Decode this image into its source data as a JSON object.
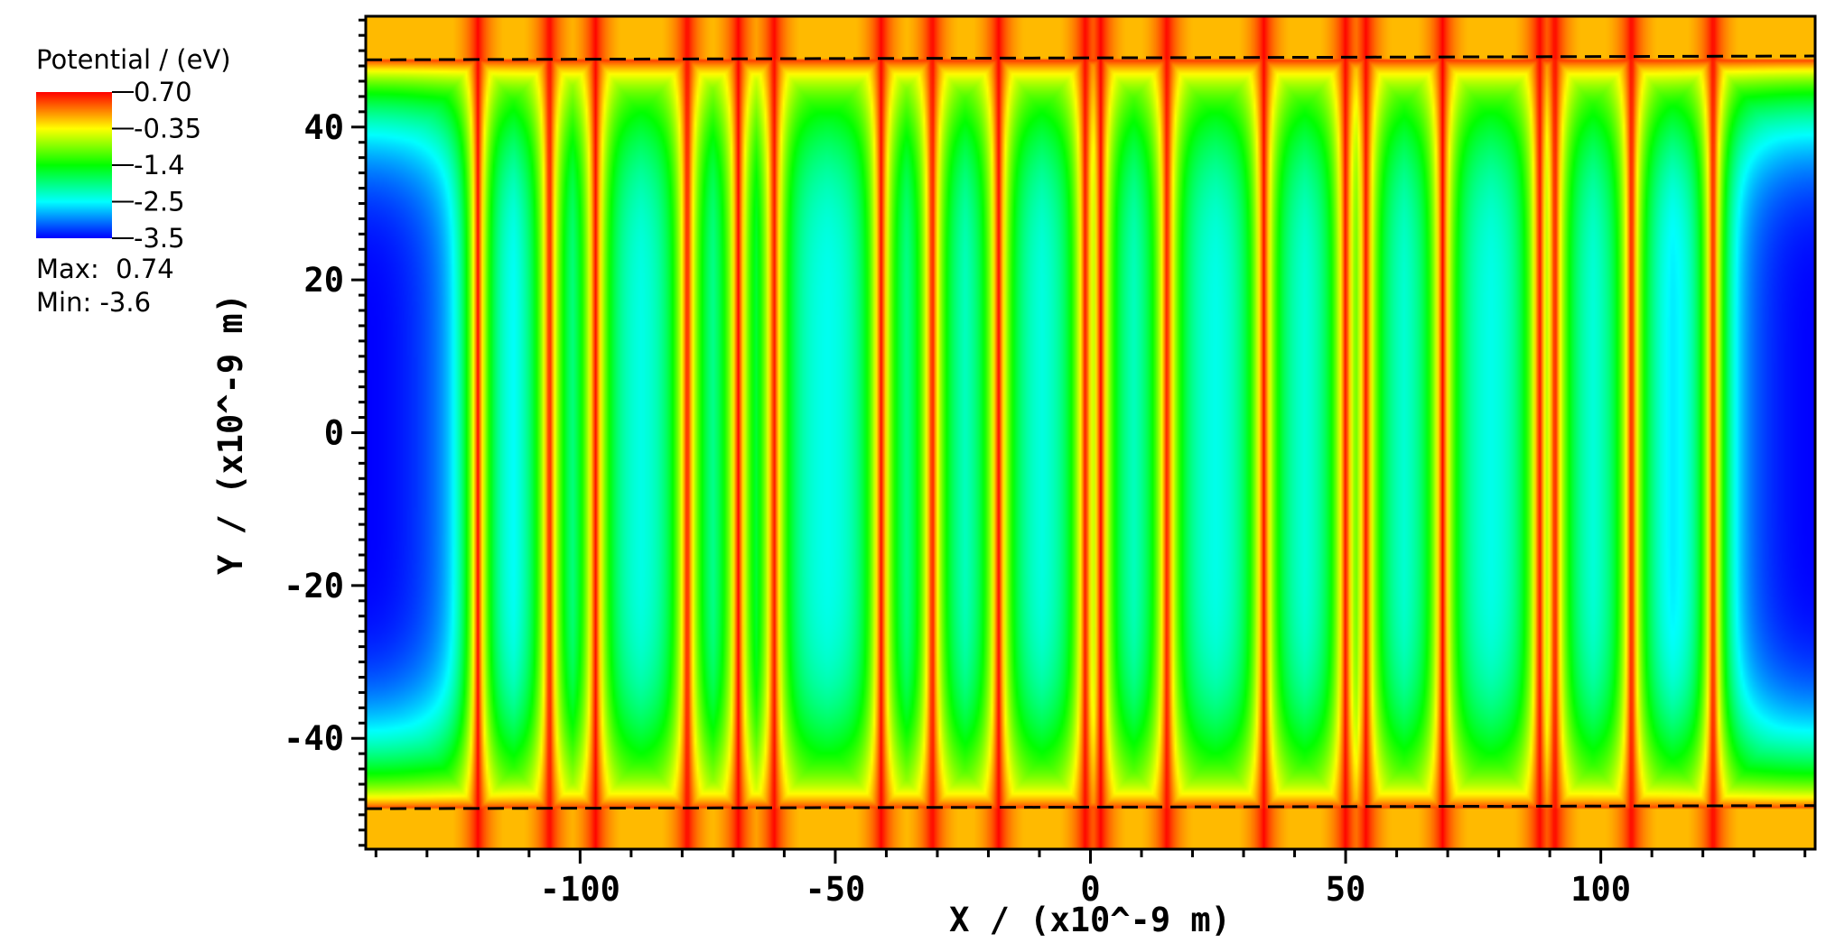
{
  "chart_data": {
    "type": "heatmap",
    "title": "",
    "xlabel": "X / (x10^-9 m)",
    "ylabel": "Y / (x10^-9 m)",
    "xlim": [
      -142,
      142
    ],
    "ylim": [
      -54.5,
      54.5
    ],
    "x_ticks": [
      -100,
      -50,
      0,
      50,
      100
    ],
    "x_tick_labels": [
      "-100",
      "-50",
      "0",
      "50",
      "100"
    ],
    "y_ticks": [
      40,
      20,
      0,
      -20,
      -40
    ],
    "y_tick_labels": [
      "40",
      "20",
      "0",
      "-20",
      "-40"
    ],
    "colorbar": {
      "title": "Potential / (eV)",
      "tick_labels": [
        "0.70",
        "-0.35",
        "-1.4",
        "-2.5",
        "-3.5"
      ],
      "max_label": "Max:  0.74",
      "min_label": "Min: -3.6",
      "colormap": [
        "#0000ff",
        "#00ffff",
        "#00ff00",
        "#ffff00",
        "#ff0000"
      ]
    },
    "field": {
      "edge_value": -3.5,
      "edge_width": 23,
      "interior_max": -2.45,
      "band_value": 0.7,
      "cap_value": -0.2,
      "boundary_y": [
        48.8,
        -49.2
      ],
      "stripes_x": [
        -120,
        -106,
        -97,
        -79,
        -69,
        -62,
        -41,
        -31,
        -18,
        -1,
        2,
        15,
        34,
        50,
        54,
        69,
        88,
        91,
        106,
        122
      ]
    },
    "dashed_lines": [
      {
        "y_left": 48.8,
        "y_right": 49.3,
        "style": "dashed",
        "color": "#000000"
      },
      {
        "y_left": -49.2,
        "y_right": -48.8,
        "style": "dashed",
        "color": "#000000"
      }
    ]
  }
}
